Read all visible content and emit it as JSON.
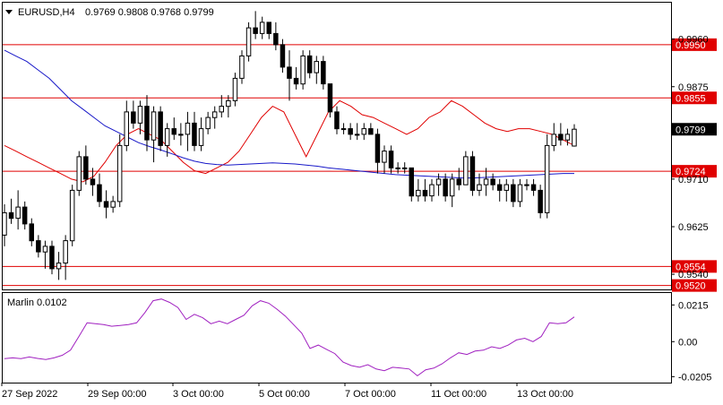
{
  "header": {
    "symbol": "EURUSD,H4",
    "ohlc": "0.9769 0.9808 0.9768 0.9799"
  },
  "indicator": {
    "name": "Marlin 0.0102",
    "ticks": [
      "0.0215",
      "0.00",
      "-0.0205"
    ],
    "tick_values": [
      0.0215,
      0.0,
      -0.0205
    ],
    "range": [
      -0.024,
      0.0285
    ],
    "color": "#a020c0"
  },
  "x_labels": [
    "27 Sep 2022",
    "29 Sep 00:00",
    "3 Oct 00:00",
    "5 Oct 00:00",
    "7 Oct 00:00",
    "11 Oct 00:00",
    "13 Oct 00:00"
  ],
  "chart_data": {
    "type": "candlestick",
    "y_ticks": [
      "0.9960",
      "0.9875",
      "0.9710",
      "0.9625",
      "0.9540"
    ],
    "y_tick_values": [
      0.996,
      0.9875,
      0.971,
      0.9625,
      0.954
    ],
    "y_range": [
      0.9513,
      1.0025
    ],
    "levels": [
      {
        "label": "0.9950",
        "value": 0.995
      },
      {
        "label": "0.9855",
        "value": 0.9855
      },
      {
        "label": "0.9724",
        "value": 0.9724
      },
      {
        "label": "0.9554",
        "value": 0.9554
      },
      {
        "label": "0.9520",
        "value": 0.952
      }
    ],
    "current_price": {
      "label": "0.9799",
      "value": 0.9799
    },
    "colors": {
      "level": "#e00000",
      "ma_red": "#e00000",
      "ma_blue": "#1818c8",
      "candle": "#000000"
    },
    "candles": [
      [
        0.961,
        0.9665,
        0.959,
        0.965
      ],
      [
        0.965,
        0.9675,
        0.963,
        0.964
      ],
      [
        0.964,
        0.969,
        0.962,
        0.966
      ],
      [
        0.966,
        0.967,
        0.962,
        0.963
      ],
      [
        0.963,
        0.964,
        0.959,
        0.96
      ],
      [
        0.96,
        0.961,
        0.957,
        0.958
      ],
      [
        0.958,
        0.96,
        0.955,
        0.959
      ],
      [
        0.959,
        0.96,
        0.954,
        0.955
      ],
      [
        0.955,
        0.958,
        0.953,
        0.956
      ],
      [
        0.956,
        0.961,
        0.953,
        0.96
      ],
      [
        0.96,
        0.97,
        0.959,
        0.969
      ],
      [
        0.969,
        0.976,
        0.968,
        0.975
      ],
      [
        0.975,
        0.977,
        0.97,
        0.971
      ],
      [
        0.971,
        0.973,
        0.968,
        0.97
      ],
      [
        0.97,
        0.972,
        0.966,
        0.967
      ],
      [
        0.967,
        0.969,
        0.964,
        0.966
      ],
      [
        0.966,
        0.968,
        0.965,
        0.967
      ],
      [
        0.967,
        0.979,
        0.966,
        0.977
      ],
      [
        0.977,
        0.985,
        0.976,
        0.983
      ],
      [
        0.983,
        0.985,
        0.98,
        0.981
      ],
      [
        0.981,
        0.985,
        0.979,
        0.984
      ],
      [
        0.984,
        0.986,
        0.976,
        0.978
      ],
      [
        0.978,
        0.984,
        0.974,
        0.983
      ],
      [
        0.983,
        0.984,
        0.976,
        0.977
      ],
      [
        0.977,
        0.981,
        0.975,
        0.98
      ],
      [
        0.98,
        0.982,
        0.978,
        0.979
      ],
      [
        0.979,
        0.981,
        0.977,
        0.979
      ],
      [
        0.979,
        0.983,
        0.976,
        0.981
      ],
      [
        0.981,
        0.983,
        0.976,
        0.977
      ],
      [
        0.977,
        0.982,
        0.976,
        0.98
      ],
      [
        0.98,
        0.983,
        0.979,
        0.982
      ],
      [
        0.982,
        0.984,
        0.98,
        0.983
      ],
      [
        0.983,
        0.986,
        0.982,
        0.984
      ],
      [
        0.984,
        0.986,
        0.982,
        0.985
      ],
      [
        0.985,
        0.99,
        0.984,
        0.989
      ],
      [
        0.989,
        0.994,
        0.988,
        0.993
      ],
      [
        0.993,
        0.999,
        0.992,
        0.998
      ],
      [
        0.998,
        1.001,
        0.996,
        0.997
      ],
      [
        0.997,
        1.0,
        0.996,
        0.999
      ],
      [
        0.999,
        0.999,
        0.996,
        0.997
      ],
      [
        0.997,
        0.999,
        0.994,
        0.995
      ],
      [
        0.995,
        0.996,
        0.99,
        0.991
      ],
      [
        0.991,
        0.994,
        0.985,
        0.989
      ],
      [
        0.989,
        0.991,
        0.987,
        0.988
      ],
      [
        0.988,
        0.994,
        0.987,
        0.993
      ],
      [
        0.993,
        0.994,
        0.989,
        0.99
      ],
      [
        0.99,
        0.993,
        0.988,
        0.992
      ],
      [
        0.992,
        0.993,
        0.987,
        0.988
      ],
      [
        0.988,
        0.988,
        0.982,
        0.983
      ],
      [
        0.983,
        0.984,
        0.979,
        0.98
      ],
      [
        0.98,
        0.981,
        0.979,
        0.98
      ],
      [
        0.98,
        0.981,
        0.978,
        0.979
      ],
      [
        0.979,
        0.981,
        0.978,
        0.979
      ],
      [
        0.979,
        0.981,
        0.978,
        0.98
      ],
      [
        0.98,
        0.981,
        0.979,
        0.979
      ],
      [
        0.979,
        0.98,
        0.972,
        0.974
      ],
      [
        0.974,
        0.977,
        0.972,
        0.976
      ],
      [
        0.976,
        0.977,
        0.972,
        0.973
      ],
      [
        0.973,
        0.974,
        0.972,
        0.973
      ],
      [
        0.973,
        0.974,
        0.972,
        0.973
      ],
      [
        0.973,
        0.973,
        0.967,
        0.968
      ],
      [
        0.968,
        0.971,
        0.967,
        0.969
      ],
      [
        0.969,
        0.971,
        0.967,
        0.968
      ],
      [
        0.968,
        0.971,
        0.967,
        0.97
      ],
      [
        0.97,
        0.972,
        0.968,
        0.971
      ],
      [
        0.971,
        0.972,
        0.967,
        0.968
      ],
      [
        0.968,
        0.972,
        0.966,
        0.971
      ],
      [
        0.971,
        0.973,
        0.969,
        0.97
      ],
      [
        0.97,
        0.976,
        0.97,
        0.975
      ],
      [
        0.975,
        0.976,
        0.968,
        0.969
      ],
      [
        0.969,
        0.972,
        0.968,
        0.97
      ],
      [
        0.97,
        0.973,
        0.968,
        0.971
      ],
      [
        0.971,
        0.972,
        0.969,
        0.97
      ],
      [
        0.97,
        0.971,
        0.967,
        0.969
      ],
      [
        0.969,
        0.971,
        0.967,
        0.97
      ],
      [
        0.97,
        0.971,
        0.966,
        0.967
      ],
      [
        0.967,
        0.971,
        0.966,
        0.97
      ],
      [
        0.97,
        0.971,
        0.969,
        0.97
      ],
      [
        0.97,
        0.971,
        0.968,
        0.969
      ],
      [
        0.969,
        0.97,
        0.964,
        0.965
      ],
      [
        0.965,
        0.979,
        0.964,
        0.977
      ],
      [
        0.977,
        0.981,
        0.976,
        0.979
      ],
      [
        0.979,
        0.981,
        0.977,
        0.978
      ],
      [
        0.978,
        0.98,
        0.977,
        0.979
      ],
      [
        0.9769,
        0.9808,
        0.9768,
        0.9799
      ]
    ],
    "ma_red": [
      0.977,
      0.976,
      0.975,
      0.974,
      0.973,
      0.972,
      0.971,
      0.9705,
      0.9715,
      0.974,
      0.977,
      0.979,
      0.98,
      0.979,
      0.978,
      0.976,
      0.974,
      0.9725,
      0.972,
      0.973,
      0.974,
      0.976,
      0.979,
      0.982,
      0.984,
      0.983,
      0.979,
      0.975,
      0.979,
      0.983,
      0.985,
      0.984,
      0.9825,
      0.982,
      0.981,
      0.98,
      0.979,
      0.98,
      0.982,
      0.983,
      0.985,
      0.984,
      0.9825,
      0.981,
      0.98,
      0.9795,
      0.98,
      0.98,
      0.9795,
      0.979,
      0.978,
      0.977
    ],
    "ma_blue": [
      0.994,
      0.993,
      0.992,
      0.9905,
      0.989,
      0.987,
      0.985,
      0.9835,
      0.982,
      0.9805,
      0.9795,
      0.9785,
      0.9775,
      0.9768,
      0.9762,
      0.9755,
      0.9748,
      0.9742,
      0.9738,
      0.9736,
      0.9735,
      0.9736,
      0.9737,
      0.9738,
      0.9739,
      0.9738,
      0.9737,
      0.9735,
      0.9733,
      0.973,
      0.9728,
      0.9726,
      0.9724,
      0.9722,
      0.972,
      0.9718,
      0.9717,
      0.9716,
      0.9715,
      0.9714,
      0.9713,
      0.9712,
      0.9712,
      0.9713,
      0.9714,
      0.9715,
      0.9716,
      0.9717,
      0.9718,
      0.9719,
      0.972,
      0.972
    ],
    "marlin": [
      -0.01,
      -0.0095,
      -0.01,
      -0.009,
      -0.0098,
      -0.0105,
      -0.0095,
      -0.008,
      -0.005,
      0.003,
      0.011,
      0.0105,
      0.01,
      0.009,
      0.0095,
      0.01,
      0.011,
      0.017,
      0.024,
      0.025,
      0.023,
      0.02,
      0.013,
      0.016,
      0.014,
      0.0105,
      0.012,
      0.0105,
      0.013,
      0.0155,
      0.021,
      0.024,
      0.0225,
      0.019,
      0.015,
      0.01,
      0.005,
      -0.004,
      -0.002,
      -0.0045,
      -0.007,
      -0.012,
      -0.014,
      -0.015,
      -0.0135,
      -0.016,
      -0.017,
      -0.015,
      -0.0155,
      -0.016,
      -0.02,
      -0.0165,
      -0.0155,
      -0.013,
      -0.0095,
      -0.0065,
      -0.0075,
      -0.0055,
      -0.005,
      -0.003,
      -0.004,
      -0.002,
      0.001,
      0.002,
      0.0,
      0.003,
      0.011,
      0.0105,
      0.011,
      0.0145
    ]
  }
}
